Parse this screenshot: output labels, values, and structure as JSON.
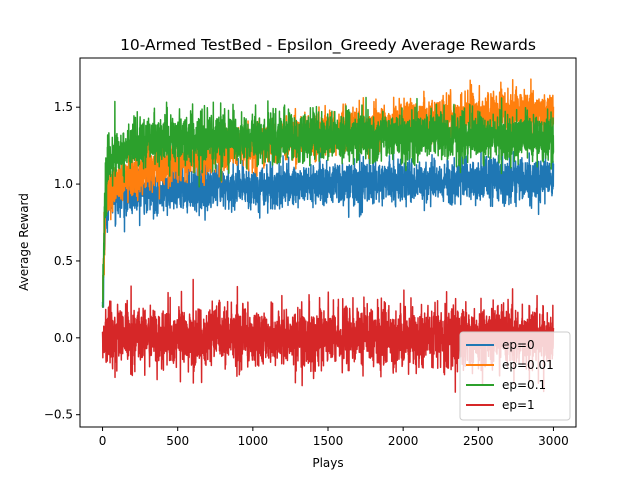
{
  "chart_data": {
    "type": "line",
    "title": "10-Armed TestBed - Epsilon_Greedy Average Rewards",
    "xlabel": "Plays",
    "ylabel": "Average Reward",
    "xlim": [
      -150,
      3150
    ],
    "ylim": [
      -0.58,
      1.82
    ],
    "xticks": [
      0,
      500,
      1000,
      1500,
      2000,
      2500,
      3000
    ],
    "yticks": [
      -0.5,
      0.0,
      0.5,
      1.0,
      1.5
    ],
    "ytick_labels": [
      "−0.5",
      "0.0",
      "0.5",
      "1.0",
      "1.5"
    ],
    "grid": false,
    "legend_position": "lower-right",
    "n_plays": 3000,
    "series": [
      {
        "name": "ep=0",
        "color": "#1f77b4",
        "x": [
          0,
          20,
          50,
          100,
          200,
          300,
          500,
          750,
          1000,
          1250,
          1500,
          1750,
          2000,
          2250,
          2500,
          2750,
          3000
        ],
        "y": [
          0.2,
          0.85,
          0.92,
          0.93,
          0.94,
          0.95,
          0.96,
          0.97,
          0.98,
          0.99,
          1.0,
          1.01,
          1.02,
          1.02,
          1.03,
          1.03,
          1.03
        ],
        "noise": [
          0.15,
          0.08,
          0.07,
          0.07,
          0.07,
          0.07,
          0.07,
          0.07,
          0.07,
          0.07,
          0.07,
          0.07,
          0.07,
          0.07,
          0.07,
          0.07,
          0.07
        ],
        "min": 0.2,
        "max": 1.21
      },
      {
        "name": "ep=0.01",
        "color": "#ff7f0e",
        "x": [
          0,
          20,
          50,
          100,
          200,
          300,
          500,
          750,
          1000,
          1250,
          1500,
          1750,
          2000,
          2250,
          2500,
          2750,
          3000
        ],
        "y": [
          0.25,
          0.95,
          0.95,
          1.0,
          1.05,
          1.1,
          1.15,
          1.2,
          1.25,
          1.3,
          1.33,
          1.36,
          1.4,
          1.42,
          1.44,
          1.46,
          1.47
        ],
        "noise": [
          0.15,
          0.08,
          0.07,
          0.07,
          0.07,
          0.07,
          0.07,
          0.07,
          0.07,
          0.07,
          0.07,
          0.07,
          0.07,
          0.07,
          0.07,
          0.07,
          0.07
        ],
        "min": 0.25,
        "max": 1.72
      },
      {
        "name": "ep=0.1",
        "color": "#2ca02c",
        "x": [
          0,
          20,
          50,
          100,
          200,
          300,
          500,
          750,
          1000,
          1250,
          1500,
          1750,
          2000,
          2250,
          2500,
          2750,
          3000
        ],
        "y": [
          0.2,
          1.05,
          1.15,
          1.2,
          1.25,
          1.28,
          1.3,
          1.3,
          1.3,
          1.3,
          1.3,
          1.3,
          1.3,
          1.3,
          1.3,
          1.3,
          1.3
        ],
        "noise": [
          0.18,
          0.09,
          0.08,
          0.08,
          0.08,
          0.08,
          0.08,
          0.08,
          0.08,
          0.08,
          0.08,
          0.08,
          0.08,
          0.08,
          0.08,
          0.08,
          0.08
        ],
        "min": 0.2,
        "max": 1.62
      },
      {
        "name": "ep=1",
        "color": "#d62728",
        "x": [
          0,
          500,
          1000,
          1500,
          2000,
          2500,
          3000
        ],
        "y": [
          0.0,
          0.0,
          0.0,
          0.0,
          0.0,
          0.0,
          0.0
        ],
        "noise": [
          0.1,
          0.1,
          0.1,
          0.1,
          0.1,
          0.1,
          0.1
        ],
        "min": -0.47,
        "max": 0.52
      }
    ]
  }
}
